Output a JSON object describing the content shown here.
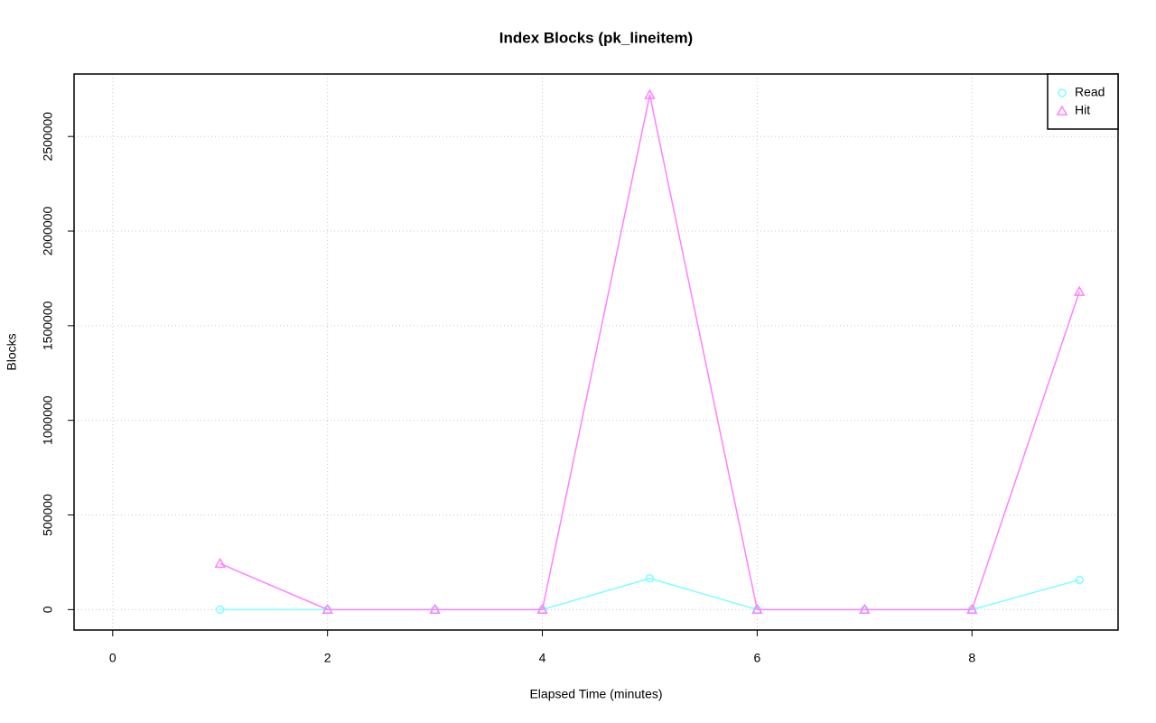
{
  "chart_data": {
    "type": "line",
    "title": "Index Blocks (pk_lineitem)",
    "x_label": "Elapsed Time (minutes)",
    "y_label": "Blocks",
    "x": [
      1,
      2,
      3,
      4,
      5,
      6,
      7,
      8,
      9
    ],
    "series": [
      {
        "name": "Read",
        "color": "#7fffff",
        "marker": "circle",
        "values": [
          0,
          0,
          0,
          0,
          165000,
          0,
          0,
          0,
          157000
        ]
      },
      {
        "name": "Hit",
        "color": "#ff80ff",
        "marker": "triangle",
        "values": [
          243000,
          0,
          0,
          0,
          2720000,
          0,
          0,
          0,
          1680000
        ]
      }
    ],
    "xlim": [
      -0.36,
      9.36
    ],
    "xticks": [
      0,
      2,
      4,
      6,
      8
    ],
    "ylim": [
      -108000,
      2830000
    ],
    "yticks": [
      0,
      500000,
      1000000,
      1500000,
      2000000,
      2500000
    ],
    "grid": true,
    "legend": "top-right"
  }
}
